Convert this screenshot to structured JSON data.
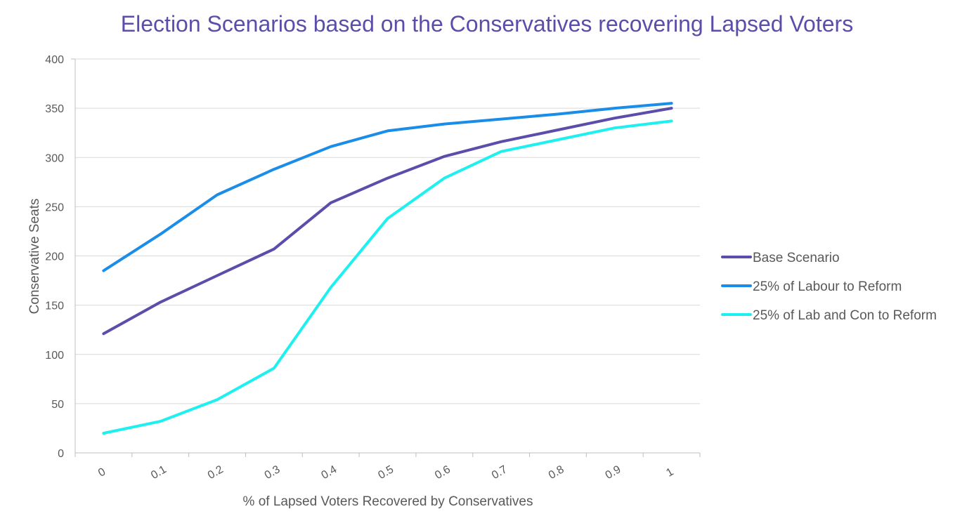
{
  "chart_data": {
    "type": "line",
    "title": "Election Scenarios based on the Conservatives recovering Lapsed Voters",
    "xlabel": "% of Lapsed Voters Recovered by Conservatives",
    "ylabel": "Conservative Seats",
    "x": [
      "0",
      "0.1",
      "0.2",
      "0.3",
      "0.4",
      "0.5",
      "0.6",
      "0.7",
      "0.8",
      "0.9",
      "1"
    ],
    "ylim": [
      0,
      400
    ],
    "yticks": [
      "0",
      "50",
      "100",
      "150",
      "200",
      "250",
      "300",
      "350",
      "400"
    ],
    "grid": true,
    "legend_position": "right",
    "series": [
      {
        "name": "Base Scenario",
        "color": "#5b4eaa",
        "values": [
          121,
          153,
          180,
          207,
          254,
          279,
          301,
          316,
          328,
          340,
          350
        ]
      },
      {
        "name": "25% of Labour to Reform",
        "color": "#1a8de8",
        "values": [
          185,
          222,
          262,
          288,
          311,
          327,
          334,
          339,
          344,
          350,
          355
        ]
      },
      {
        "name": "25% of Lab and Con to Reform",
        "color": "#1ef0f0",
        "values": [
          20,
          32,
          54,
          86,
          168,
          238,
          279,
          306,
          318,
          330,
          337
        ]
      }
    ]
  }
}
